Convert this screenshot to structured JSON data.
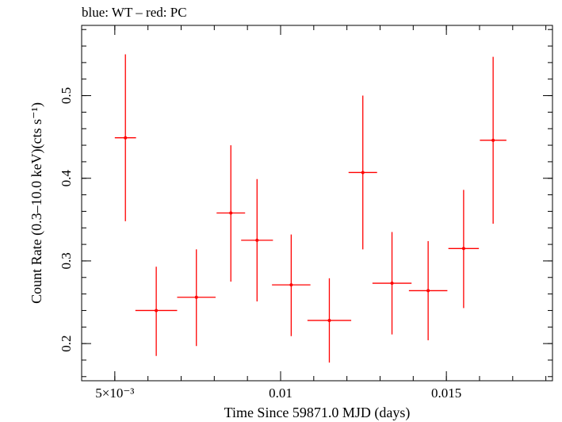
{
  "chart_data": {
    "type": "scatter",
    "title": "blue: WT – red: PC",
    "xlabel": "Time Since 59871.0 MJD (days)",
    "ylabel": "Count Rate (0.3–10.0 keV)(cts s⁻¹)",
    "xlim": [
      0.004,
      0.0182
    ],
    "ylim": [
      0.155,
      0.585
    ],
    "x_log": false,
    "y_log": false,
    "grid": false,
    "x_ticks": [
      {
        "value": 0.005,
        "label": "5×10⁻³"
      },
      {
        "value": 0.01,
        "label": "0.01"
      },
      {
        "value": 0.015,
        "label": "0.015"
      }
    ],
    "y_ticks": [
      {
        "value": 0.2,
        "label": "0.2"
      },
      {
        "value": 0.3,
        "label": "0.3"
      },
      {
        "value": 0.4,
        "label": "0.4"
      },
      {
        "value": 0.5,
        "label": "0.5"
      }
    ],
    "x_minor_step": 0.001,
    "y_minor_step": 0.02,
    "colors": {
      "PC": "#ff0000",
      "axes": "#000000"
    },
    "series": [
      {
        "name": "PC",
        "color": "#ff0000",
        "points": [
          {
            "x": 0.00532,
            "xerr": 0.00032,
            "y": 0.449,
            "yerr": [
              0.101,
              0.101
            ]
          },
          {
            "x": 0.00625,
            "xerr": 0.00063,
            "y": 0.24,
            "yerr": [
              0.055,
              0.053
            ]
          },
          {
            "x": 0.00746,
            "xerr": 0.00058,
            "y": 0.256,
            "yerr": [
              0.059,
              0.058
            ]
          },
          {
            "x": 0.0085,
            "xerr": 0.00043,
            "y": 0.358,
            "yerr": [
              0.083,
              0.082
            ]
          },
          {
            "x": 0.00929,
            "xerr": 0.00048,
            "y": 0.325,
            "yerr": [
              0.074,
              0.074
            ]
          },
          {
            "x": 0.01032,
            "xerr": 0.00058,
            "y": 0.271,
            "yerr": [
              0.062,
              0.061
            ]
          },
          {
            "x": 0.01147,
            "xerr": 0.00066,
            "y": 0.228,
            "yerr": [
              0.051,
              0.051
            ]
          },
          {
            "x": 0.01248,
            "xerr": 0.00043,
            "y": 0.407,
            "yerr": [
              0.093,
              0.093
            ]
          },
          {
            "x": 0.01336,
            "xerr": 0.00059,
            "y": 0.273,
            "yerr": [
              0.062,
              0.062
            ]
          },
          {
            "x": 0.01445,
            "xerr": 0.00058,
            "y": 0.264,
            "yerr": [
              0.06,
              0.06
            ]
          },
          {
            "x": 0.01552,
            "xerr": 0.00046,
            "y": 0.315,
            "yerr": [
              0.072,
              0.071
            ]
          },
          {
            "x": 0.01641,
            "xerr": 0.0004,
            "y": 0.446,
            "yerr": [
              0.101,
              0.101
            ]
          }
        ]
      }
    ]
  }
}
